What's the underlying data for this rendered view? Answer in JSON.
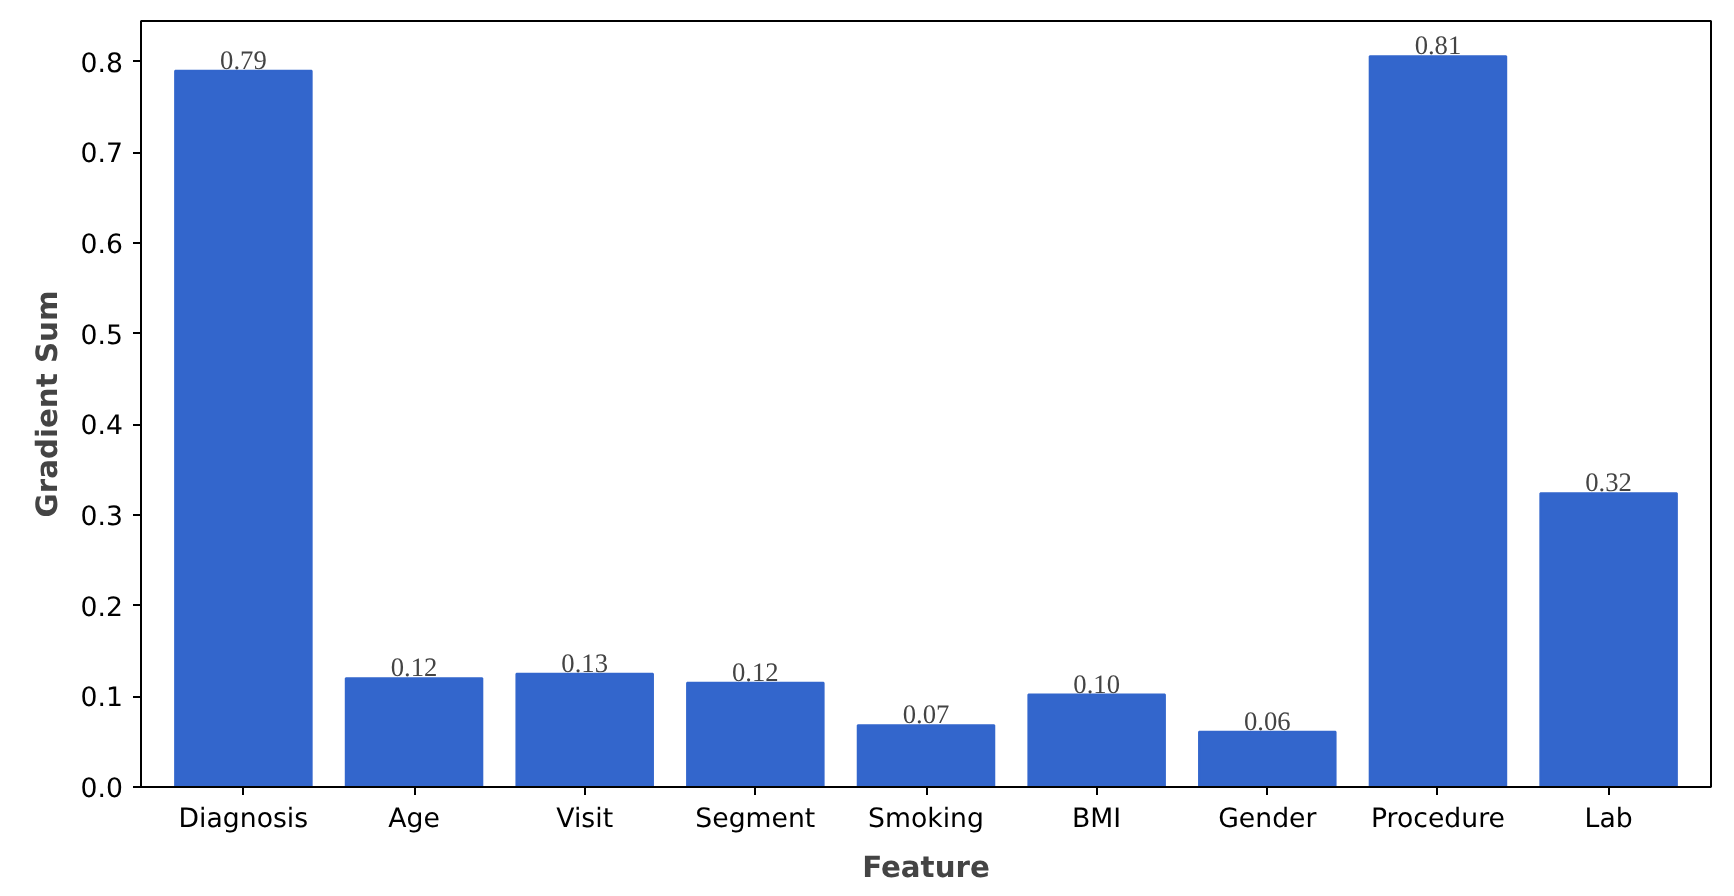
{
  "chart_data": {
    "type": "bar",
    "xlabel": "Feature",
    "ylabel": "Gradient Sum",
    "categories": [
      "Diagnosis",
      "Age",
      "Visit",
      "Segment",
      "Smoking",
      "BMI",
      "Gender",
      "Procedure",
      "Lab"
    ],
    "values": [
      0.79,
      0.12,
      0.125,
      0.115,
      0.068,
      0.102,
      0.061,
      0.806,
      0.324
    ],
    "value_labels": [
      "0.79",
      "0.12",
      "0.13",
      "0.12",
      "0.07",
      "0.10",
      "0.06",
      "0.81",
      "0.32"
    ],
    "color": "#3366cc",
    "ylim": [
      0,
      0.845
    ],
    "yticks": [
      {
        "value": 0,
        "label": "0.0"
      },
      0.1,
      0.2,
      0.3,
      0.4,
      0.5,
      0.6,
      0.7,
      0.8
    ],
    "grid": false
  }
}
